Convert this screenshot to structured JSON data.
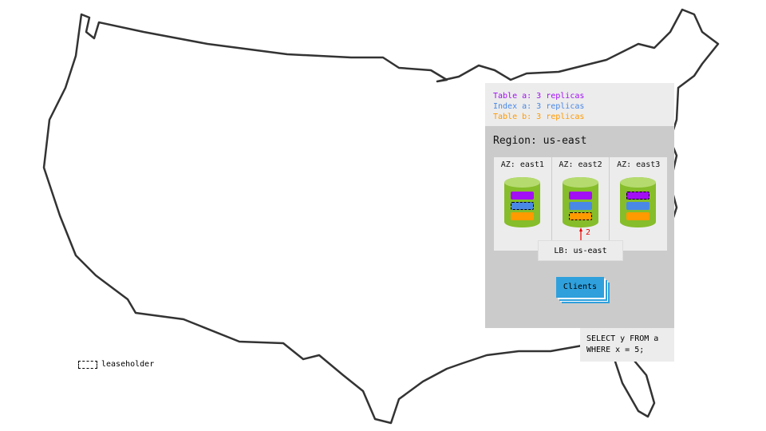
{
  "legend": {
    "lines": [
      {
        "text": "Table a: 3 replicas",
        "color": "#a20ff5"
      },
      {
        "text": "Index a: 3 replicas",
        "color": "#4a88e5"
      },
      {
        "text": "Table b: 3 replicas",
        "color": "#ff9a00"
      }
    ]
  },
  "region": {
    "title": "Region: us-east",
    "azs": [
      {
        "label": "AZ: east1",
        "leaseholder": "index-a"
      },
      {
        "label": "AZ: east2",
        "leaseholder": "table-b"
      },
      {
        "label": "AZ: east3",
        "leaseholder": "table-a"
      }
    ],
    "lb": "LB: us-east",
    "arrow_label": "2",
    "clients": "Clients"
  },
  "query": "SELECT y FROM a\nWHERE x = 5;",
  "key": {
    "leaseholder": "leaseholder"
  }
}
